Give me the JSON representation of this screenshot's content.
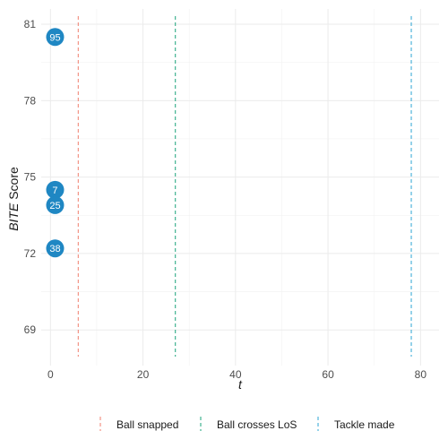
{
  "chart_data": {
    "type": "scatter",
    "xlabel": "t",
    "ylabel_italic": "BITE",
    "ylabel_rest": " Score",
    "xlim": [
      -2,
      84
    ],
    "ylim": [
      67.6,
      81.6
    ],
    "x_ticks": [
      0,
      20,
      40,
      60,
      80
    ],
    "y_ticks": [
      69,
      72,
      75,
      78,
      81
    ],
    "grid": true,
    "point_color": "#1f87c3",
    "points": [
      {
        "label": "95",
        "x": 1,
        "y": 80.5
      },
      {
        "label": "7",
        "x": 1,
        "y": 74.5
      },
      {
        "label": "25",
        "x": 1,
        "y": 73.9
      },
      {
        "label": "38",
        "x": 1,
        "y": 72.2
      }
    ],
    "vlines": [
      {
        "name": "Ball snapped",
        "x": 6,
        "color": "#f07e6e"
      },
      {
        "name": "Ball crosses LoS",
        "x": 27,
        "color": "#1aa37a"
      },
      {
        "name": "Tackle made",
        "x": 78,
        "color": "#2ca5d4"
      }
    ],
    "legend_position": "bottom"
  }
}
